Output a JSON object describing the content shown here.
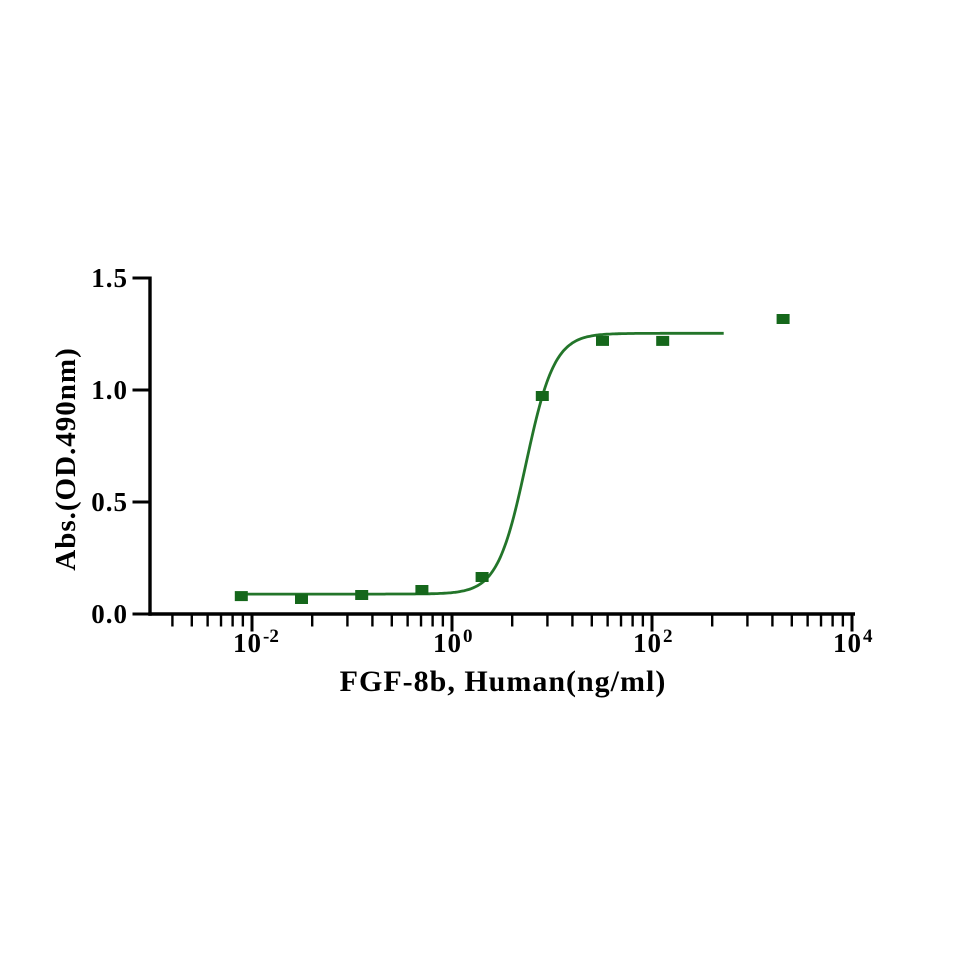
{
  "chart_data": {
    "type": "scatter",
    "title": "",
    "xlabel": "FGF-8b, Human(ng/ml)",
    "ylabel": "Abs.(OD.490nm)",
    "x_scale": "log10",
    "xlim_log10": [
      -3.02,
      4.03
    ],
    "ylim": [
      0.0,
      1.5
    ],
    "grid": false,
    "legend": "none",
    "marker": "filled-square",
    "series_color": "#15671b",
    "curve_color": "#23752a",
    "axis_color": "#000000",
    "background_color": "#ffffff",
    "x": [
      0.0078125,
      0.03125,
      0.125,
      0.5,
      2,
      8,
      32,
      128,
      2048
    ],
    "y": [
      0.08,
      0.067,
      0.085,
      0.107,
      0.165,
      0.973,
      1.219,
      1.219,
      1.317
    ],
    "fit_curve": {
      "model": "4PL-sigmoid",
      "bottom": 0.089,
      "top": 1.253,
      "ec50": 5.5,
      "hill": 3.05,
      "x_start": 0.0072,
      "x_end": 537
    },
    "x_ticks": [
      {
        "base": "10",
        "sup": "-2",
        "log": -2
      },
      {
        "base": "10",
        "sup": "0",
        "log": 0
      },
      {
        "base": "10",
        "sup": "2",
        "log": 2
      },
      {
        "base": "10",
        "sup": "4",
        "log": 4
      }
    ],
    "x_minor_tick_rule": "log-spaced 2-9 within each 2-decade major interval",
    "y_ticks": [
      {
        "label": "0.0",
        "value": 0.0
      },
      {
        "label": "0.5",
        "value": 0.5
      },
      {
        "label": "1.0",
        "value": 1.0
      },
      {
        "label": "1.5",
        "value": 1.5
      }
    ]
  }
}
